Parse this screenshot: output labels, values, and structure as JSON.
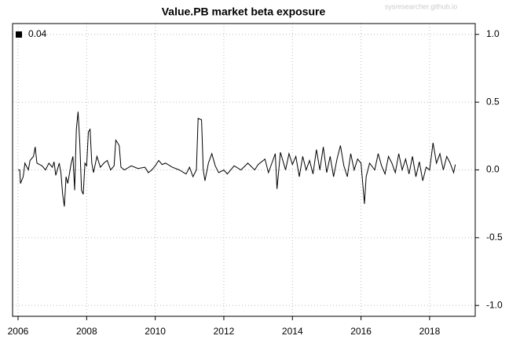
{
  "chart_data": {
    "type": "line",
    "title": "Value.PB market beta exposure",
    "watermark": "sysresearcher.github.io",
    "x": [
      2006.0,
      2006.05,
      2006.07,
      2006.15,
      2006.2,
      2006.3,
      2006.35,
      2006.45,
      2006.5,
      2006.55,
      2006.7,
      2006.8,
      2006.9,
      2007.0,
      2007.05,
      2007.1,
      2007.2,
      2007.25,
      2007.3,
      2007.35,
      2007.4,
      2007.45,
      2007.55,
      2007.6,
      2007.65,
      2007.7,
      2007.75,
      2007.8,
      2007.85,
      2007.9,
      2007.95,
      2008.0,
      2008.05,
      2008.1,
      2008.15,
      2008.2,
      2008.3,
      2008.4,
      2008.5,
      2008.6,
      2008.7,
      2008.8,
      2008.85,
      2008.95,
      2009.0,
      2009.1,
      2009.3,
      2009.5,
      2009.7,
      2009.8,
      2009.9,
      2010.0,
      2010.1,
      2010.2,
      2010.3,
      2010.5,
      2010.7,
      2010.9,
      2011.0,
      2011.1,
      2011.2,
      2011.25,
      2011.35,
      2011.4,
      2011.45,
      2011.55,
      2011.65,
      2011.75,
      2011.85,
      2012.0,
      2012.1,
      2012.3,
      2012.5,
      2012.7,
      2012.9,
      2013.0,
      2013.2,
      2013.3,
      2013.4,
      2013.5,
      2013.55,
      2013.65,
      2013.8,
      2013.9,
      2014.0,
      2014.1,
      2014.2,
      2014.3,
      2014.4,
      2014.5,
      2014.6,
      2014.7,
      2014.8,
      2014.9,
      2015.0,
      2015.1,
      2015.2,
      2015.3,
      2015.4,
      2015.5,
      2015.6,
      2015.7,
      2015.8,
      2015.9,
      2016.0,
      2016.05,
      2016.1,
      2016.15,
      2016.25,
      2016.4,
      2016.5,
      2016.6,
      2016.7,
      2016.8,
      2016.9,
      2017.0,
      2017.1,
      2017.2,
      2017.3,
      2017.4,
      2017.5,
      2017.6,
      2017.7,
      2017.8,
      2017.9,
      2018.0,
      2018.1,
      2018.2,
      2018.3,
      2018.4,
      2018.5,
      2018.6,
      2018.7,
      2018.75
    ],
    "series": [
      {
        "name": "0.04",
        "color": "#000000",
        "values": [
          0.0,
          0.0,
          -0.1,
          -0.05,
          0.05,
          0.0,
          0.07,
          0.1,
          0.17,
          0.05,
          0.03,
          0.0,
          0.05,
          0.02,
          0.06,
          -0.04,
          0.05,
          -0.02,
          -0.18,
          -0.27,
          -0.05,
          -0.1,
          0.05,
          0.1,
          -0.15,
          0.3,
          0.43,
          0.2,
          -0.15,
          -0.18,
          0.05,
          0.03,
          0.28,
          0.3,
          0.05,
          -0.02,
          0.1,
          0.02,
          0.05,
          0.07,
          0.0,
          0.03,
          0.22,
          0.18,
          0.02,
          0.0,
          0.03,
          0.01,
          0.02,
          -0.02,
          0.0,
          0.03,
          0.07,
          0.04,
          0.05,
          0.02,
          0.0,
          -0.03,
          0.02,
          -0.05,
          0.0,
          0.38,
          0.37,
          0.0,
          -0.08,
          0.05,
          0.12,
          0.03,
          -0.02,
          0.0,
          -0.03,
          0.03,
          0.0,
          0.05,
          0.0,
          0.04,
          0.08,
          -0.02,
          0.05,
          0.12,
          -0.14,
          0.13,
          0.0,
          0.12,
          0.04,
          0.1,
          -0.05,
          0.1,
          0.0,
          0.07,
          -0.03,
          0.15,
          0.0,
          0.17,
          -0.02,
          0.1,
          -0.05,
          0.08,
          0.18,
          0.03,
          -0.05,
          0.12,
          0.0,
          0.08,
          0.05,
          -0.1,
          -0.25,
          -0.05,
          0.05,
          0.0,
          0.12,
          0.03,
          -0.03,
          0.1,
          0.05,
          -0.02,
          0.12,
          0.0,
          0.08,
          -0.03,
          0.1,
          -0.05,
          0.06,
          -0.08,
          0.02,
          0.0,
          0.2,
          0.05,
          0.12,
          0.0,
          0.1,
          0.05,
          -0.02,
          0.04
        ]
      }
    ],
    "xlim": [
      2005.84,
      2019.33
    ],
    "xticks": [
      2006,
      2008,
      2010,
      2012,
      2014,
      2016,
      2018
    ],
    "ylim": [
      -1.08,
      1.08
    ],
    "yticks": [
      {
        "value": -1,
        "label": "-1.0"
      },
      -0.5,
      {
        "value": 0,
        "label": "0.0"
      },
      0.5,
      {
        "value": 1,
        "label": "1.0"
      }
    ],
    "grid": true,
    "legend": "top-left"
  }
}
